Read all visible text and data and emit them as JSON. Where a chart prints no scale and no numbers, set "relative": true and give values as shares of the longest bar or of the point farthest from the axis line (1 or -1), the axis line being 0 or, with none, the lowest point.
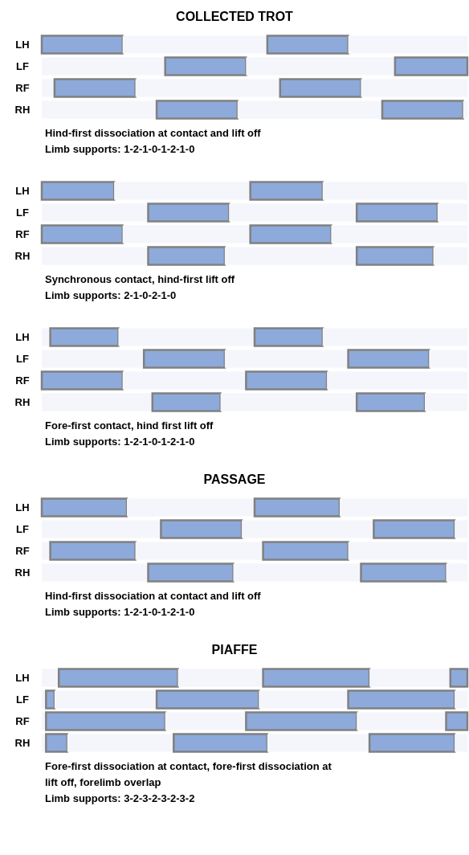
{
  "chart_data": [
    {
      "type": "bar",
      "title": "COLLECTED TROT",
      "orientation": "horizontal",
      "stacked": true,
      "relative": true,
      "categories": [
        "LH",
        "LF",
        "RF",
        "RH"
      ],
      "series": [
        {
          "color": "#f4f6fb",
          "values": [
            null,
            0.29,
            0.03,
            0.27
          ]
        },
        {
          "color": "#8eaadb",
          "values": [
            0.19,
            0.19,
            0.19,
            0.19
          ]
        },
        {
          "color": "#f4f6fb",
          "values": [
            0.34,
            0.35,
            0.34,
            0.34
          ]
        },
        {
          "color": "#8eaadb",
          "values": [
            0.19,
            0.17,
            0.19,
            0.19
          ]
        },
        {
          "color": "#f4f6fb",
          "values": [
            0.28,
            null,
            0.25,
            0.01
          ]
        }
      ],
      "annotations": [
        "Hind-first dissociation at contact and lift off",
        "Limb supports: 1-2-1-0-1-2-1-0"
      ]
    },
    {
      "type": "bar",
      "orientation": "horizontal",
      "stacked": true,
      "relative": true,
      "categories": [
        "LH",
        "LF",
        "RF",
        "RH"
      ],
      "series": [
        {
          "color": "#f4f6fb",
          "values": [
            null,
            0.25,
            null,
            0.25
          ]
        },
        {
          "color": "#8eaadb",
          "values": [
            0.17,
            0.19,
            0.19,
            0.18
          ]
        },
        {
          "color": "#f4f6fb",
          "values": [
            0.32,
            0.3,
            0.3,
            0.31
          ]
        },
        {
          "color": "#8eaadb",
          "values": [
            0.17,
            0.19,
            0.19,
            0.18
          ]
        },
        {
          "color": "#f4f6fb",
          "values": [
            0.34,
            0.07,
            0.32,
            0.08
          ]
        }
      ],
      "annotations": [
        "Synchronous contact, hind-first lift off",
        "Limb supports: 2-1-0-2-1-0"
      ]
    },
    {
      "type": "bar",
      "orientation": "horizontal",
      "stacked": true,
      "relative": true,
      "categories": [
        "LH",
        "LF",
        "RF",
        "RH"
      ],
      "series": [
        {
          "color": "#f4f6fb",
          "values": [
            0.02,
            0.24,
            null,
            0.26
          ]
        },
        {
          "color": "#8eaadb",
          "values": [
            0.16,
            0.19,
            0.19,
            0.16
          ]
        },
        {
          "color": "#f4f6fb",
          "values": [
            0.32,
            0.29,
            0.29,
            0.32
          ]
        },
        {
          "color": "#8eaadb",
          "values": [
            0.16,
            0.19,
            0.19,
            0.16
          ]
        },
        {
          "color": "#f4f6fb",
          "values": [
            0.34,
            0.09,
            0.33,
            0.1
          ]
        }
      ],
      "annotations": [
        "Fore-first contact, hind first lift off",
        "Limb supports: 1-2-1-0-1-2-1-0"
      ]
    },
    {
      "type": "bar",
      "title": "PASSAGE",
      "orientation": "horizontal",
      "stacked": true,
      "relative": true,
      "categories": [
        "LH",
        "LF",
        "RF",
        "RH"
      ],
      "series": [
        {
          "color": "#f4f6fb",
          "values": [
            null,
            0.28,
            0.02,
            0.25
          ]
        },
        {
          "color": "#8eaadb",
          "values": [
            0.2,
            0.19,
            0.2,
            0.2
          ]
        },
        {
          "color": "#f4f6fb",
          "values": [
            0.3,
            0.31,
            0.3,
            0.3
          ]
        },
        {
          "color": "#8eaadb",
          "values": [
            0.2,
            0.19,
            0.2,
            0.2
          ]
        },
        {
          "color": "#f4f6fb",
          "values": [
            0.3,
            0.03,
            0.28,
            0.05
          ]
        }
      ],
      "annotations": [
        "Hind-first dissociation at contact and lift off",
        "Limb supports: 1-2-1-0-1-2-1-0"
      ]
    },
    {
      "type": "bar",
      "title": "PIAFFE",
      "orientation": "horizontal",
      "stacked": true,
      "relative": true,
      "categories": [
        "LH",
        "LF",
        "RF",
        "RH"
      ],
      "series": [
        {
          "color": "#f4f6fb",
          "values": [
            0.04,
            0.01,
            0.01,
            0.01
          ]
        },
        {
          "color": "#8eaadb",
          "values": [
            0.28,
            0.02,
            0.28,
            0.05
          ]
        },
        {
          "color": "#f4f6fb",
          "values": [
            0.2,
            0.24,
            0.19,
            0.25
          ]
        },
        {
          "color": "#8eaadb",
          "values": [
            0.25,
            0.24,
            0.26,
            0.22
          ]
        },
        {
          "color": "#f4f6fb",
          "values": [
            0.19,
            0.21,
            0.21,
            0.24
          ]
        },
        {
          "color": "#8eaadb",
          "values": [
            0.04,
            0.25,
            0.05,
            0.2
          ]
        },
        {
          "color": "#f4f6fb",
          "values": [
            null,
            0.03,
            null,
            0.03
          ]
        }
      ],
      "annotations": [
        "Fore-first dissociation at contact, fore-first dissociation at lift off, forelimb overlap",
        "Limb supports: 3-2-3-2-3-2-3-2"
      ]
    }
  ]
}
